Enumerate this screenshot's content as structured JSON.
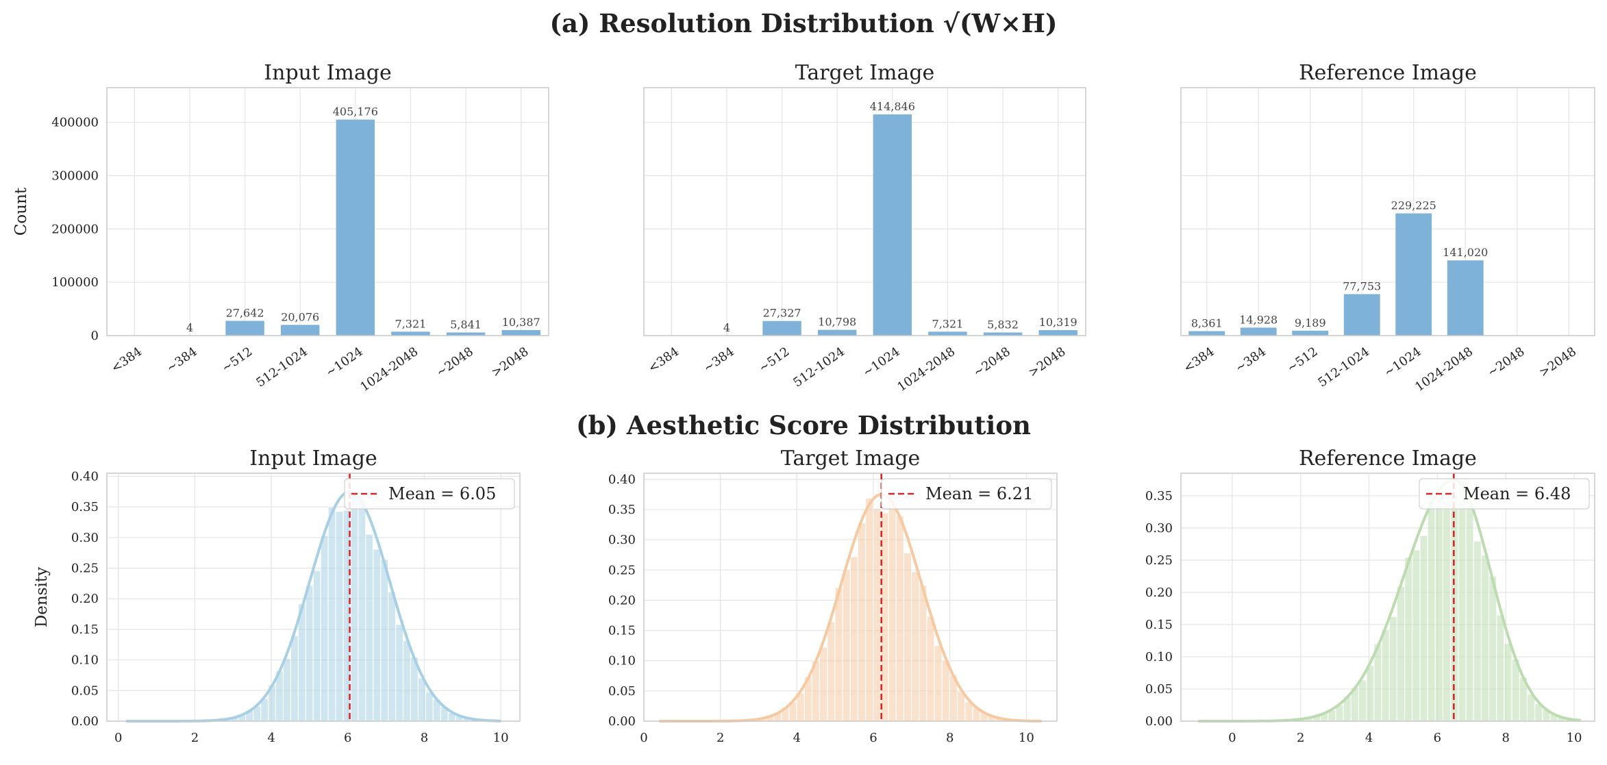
{
  "figure": {
    "title_a": "(a) Resolution Distribution  √(W×H)",
    "title_b": "(b) Aesthetic Score Distribution"
  },
  "chart_data": [
    {
      "type": "bar",
      "title": "Input Image",
      "ylabel": "Count",
      "categories": [
        "<384",
        "~384",
        "~512",
        "512-1024",
        "~1024",
        "1024-2048",
        "~2048",
        ">2048"
      ],
      "values": [
        0,
        4,
        27642,
        20076,
        405176,
        7321,
        5841,
        10387
      ],
      "labels": [
        "",
        "4",
        "27,642",
        "20,076",
        "405,176",
        "7,321",
        "5,841",
        "10,387"
      ],
      "ylim": [
        0,
        465000
      ],
      "yticks": [
        0,
        100000,
        200000,
        300000,
        400000
      ],
      "ytick_labels": [
        "0",
        "100000",
        "200000",
        "300000",
        "400000"
      ],
      "color": "#7fb2d8",
      "grid": true
    },
    {
      "type": "bar",
      "title": "Target Image",
      "categories": [
        "<384",
        "~384",
        "~512",
        "512-1024",
        "~1024",
        "1024-2048",
        "~2048",
        ">2048"
      ],
      "values": [
        0,
        4,
        27327,
        10798,
        414846,
        7321,
        5832,
        10319
      ],
      "labels": [
        "",
        "4",
        "27,327",
        "10,798",
        "414,846",
        "7,321",
        "5,832",
        "10,319"
      ],
      "ylim": [
        0,
        465000
      ],
      "color": "#7fb2d8",
      "grid": true
    },
    {
      "type": "bar",
      "title": "Reference Image",
      "categories": [
        "<384",
        "~384",
        "~512",
        "512-1024",
        "~1024",
        "1024-2048",
        "~2048",
        ">2048"
      ],
      "values": [
        8361,
        14928,
        9189,
        77753,
        229225,
        141020,
        0,
        0
      ],
      "labels": [
        "8,361",
        "14,928",
        "9,189",
        "77,753",
        "229,225",
        "141,020",
        "",
        ""
      ],
      "ylim": [
        0,
        465000
      ],
      "color": "#7fb2d8",
      "grid": true
    },
    {
      "type": "area",
      "title": "Input Image",
      "ylabel": "Density",
      "mean": 6.05,
      "sd": 1.05,
      "legend": "Mean = 6.05",
      "legend_position": "top-right",
      "xlim": [
        -0.3,
        10.5
      ],
      "xticks": [
        0,
        2,
        4,
        6,
        8,
        10
      ],
      "ylim": [
        0,
        0.405
      ],
      "yticks": [
        0,
        0.05,
        0.1,
        0.15,
        0.2,
        0.25,
        0.3,
        0.35,
        0.4
      ],
      "ytick_labels": [
        "0.00",
        "0.05",
        "0.10",
        "0.15",
        "0.20",
        "0.25",
        "0.30",
        "0.35",
        "0.40"
      ],
      "x_range": [
        0.2,
        10
      ],
      "color": "#a8d0e4",
      "grid": true
    },
    {
      "type": "area",
      "title": "Target Image",
      "mean": 6.21,
      "sd": 1.05,
      "legend": "Mean = 6.21",
      "legend_position": "top-right",
      "xlim": [
        0,
        10.8
      ],
      "xticks": [
        0,
        2,
        4,
        6,
        8,
        10
      ],
      "ylim": [
        0,
        0.41
      ],
      "yticks": [
        0,
        0.05,
        0.1,
        0.15,
        0.2,
        0.25,
        0.3,
        0.35,
        0.4
      ],
      "ytick_labels": [
        "0.00",
        "0.05",
        "0.10",
        "0.15",
        "0.20",
        "0.25",
        "0.30",
        "0.35",
        "0.40"
      ],
      "x_range": [
        0.4,
        10.4
      ],
      "color": "#f6c9a0",
      "grid": true
    },
    {
      "type": "area",
      "title": "Reference Image",
      "mean": 6.48,
      "sd": 1.1,
      "skew_left_sd": 1.45,
      "legend": "Mean = 6.48",
      "legend_position": "top-right",
      "xlim": [
        -1.5,
        10.6
      ],
      "xticks": [
        0,
        2,
        4,
        6,
        8,
        10
      ],
      "ylim": [
        0,
        0.385
      ],
      "yticks": [
        0,
        0.05,
        0.1,
        0.15,
        0.2,
        0.25,
        0.3,
        0.35
      ],
      "ytick_labels": [
        "0.00",
        "0.05",
        "0.10",
        "0.15",
        "0.20",
        "0.25",
        "0.30",
        "0.35"
      ],
      "x_range": [
        -1.0,
        10.2
      ],
      "color": "#bcdcb0",
      "grid": true
    }
  ]
}
